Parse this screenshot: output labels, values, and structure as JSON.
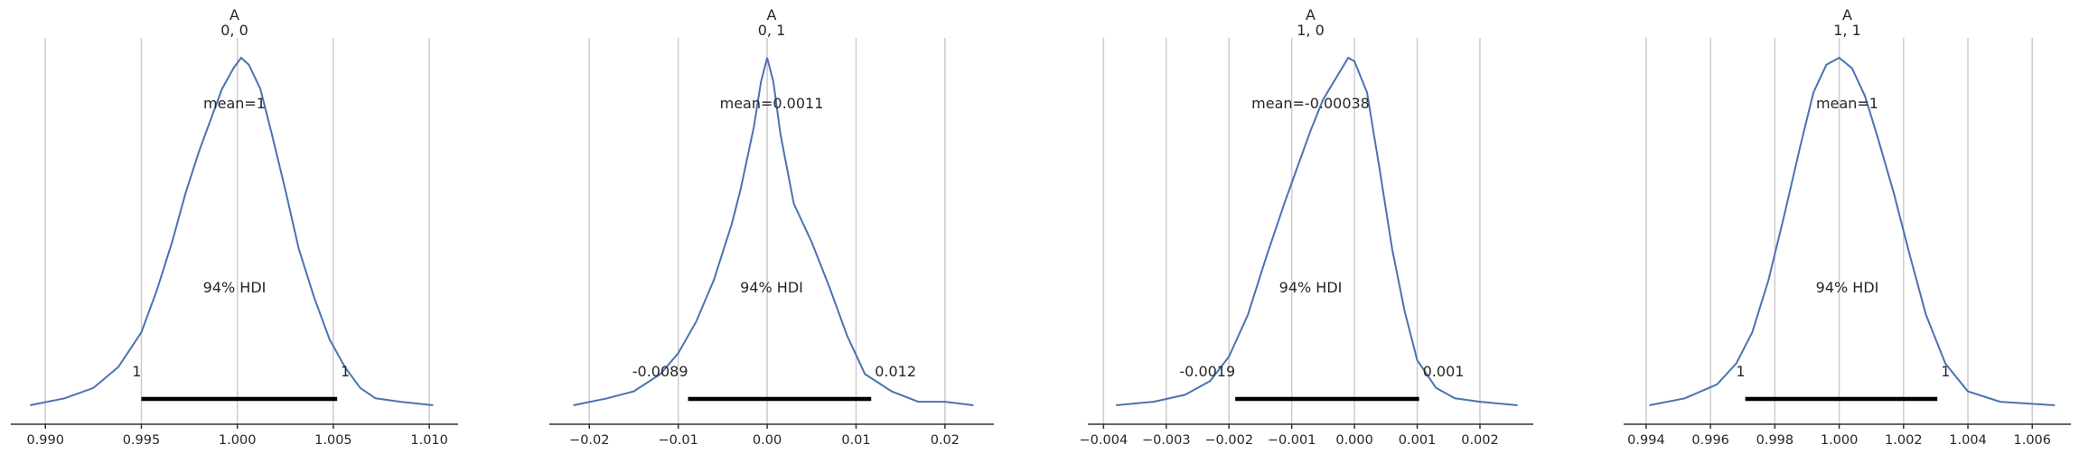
{
  "chart_data": [
    {
      "type": "line",
      "variable": "A",
      "coords": "0, 0",
      "mean_label": "mean=1",
      "hdi_label": "94% HDI",
      "hdi_low": 0.995,
      "hdi_high": 1.0052,
      "hdi_low_label": "1",
      "hdi_high_label": "1",
      "xlim": [
        0.9882,
        1.0115
      ],
      "xticks": [
        0.99,
        0.995,
        1.0,
        1.005,
        1.01
      ],
      "xtick_labels": [
        "0.990",
        "0.995",
        "1.000",
        "1.005",
        "1.010"
      ],
      "density": {
        "x": [
          0.9892,
          0.991,
          0.9925,
          0.9938,
          0.995,
          0.9958,
          0.9966,
          0.9973,
          0.998,
          0.9986,
          0.9992,
          0.9998,
          1.0002,
          1.0006,
          1.0012,
          1.0018,
          1.0025,
          1.0032,
          1.004,
          1.0048,
          1.0056,
          1.0064,
          1.0072,
          1.0085,
          1.0102
        ],
        "y": [
          0.0,
          0.02,
          0.05,
          0.11,
          0.21,
          0.33,
          0.47,
          0.61,
          0.73,
          0.82,
          0.91,
          0.97,
          1.0,
          0.98,
          0.91,
          0.78,
          0.62,
          0.45,
          0.31,
          0.19,
          0.11,
          0.05,
          0.02,
          0.01,
          0.0
        ]
      }
    },
    {
      "type": "line",
      "variable": "A",
      "coords": "0, 1",
      "mean_label": "mean=0.0011",
      "hdi_label": "94% HDI",
      "hdi_low": -0.0089,
      "hdi_high": 0.0117,
      "hdi_low_label": "-0.0089",
      "hdi_high_label": "0.012",
      "xlim": [
        -0.0245,
        0.0255
      ],
      "xticks": [
        -0.02,
        -0.01,
        0.0,
        0.01,
        0.02
      ],
      "xtick_labels": [
        "−0.02",
        "−0.01",
        "0.00",
        "0.01",
        "0.02"
      ],
      "density": {
        "x": [
          -0.0218,
          -0.018,
          -0.015,
          -0.012,
          -0.01,
          -0.008,
          -0.006,
          -0.004,
          -0.003,
          -0.0015,
          -0.0007,
          0.0,
          0.0007,
          0.0015,
          0.003,
          0.005,
          0.007,
          0.009,
          0.011,
          0.014,
          0.017,
          0.02,
          0.0232
        ],
        "y": [
          0.0,
          0.02,
          0.04,
          0.09,
          0.15,
          0.24,
          0.36,
          0.52,
          0.62,
          0.8,
          0.93,
          1.0,
          0.93,
          0.78,
          0.58,
          0.47,
          0.34,
          0.2,
          0.09,
          0.04,
          0.01,
          0.01,
          0.0
        ]
      }
    },
    {
      "type": "line",
      "variable": "A",
      "coords": "1, 0",
      "mean_label": "mean=-0.00038",
      "hdi_label": "94% HDI",
      "hdi_low": -0.0019,
      "hdi_high": 0.00103,
      "hdi_low_label": "-0.0019",
      "hdi_high_label": "0.001",
      "xlim": [
        -0.00425,
        0.00285
      ],
      "xticks": [
        -0.004,
        -0.003,
        -0.002,
        -0.001,
        0.0,
        0.001,
        0.002
      ],
      "xtick_labels": [
        "−0.004",
        "−0.003",
        "−0.002",
        "−0.001",
        "0.000",
        "0.001",
        "0.002"
      ],
      "density": {
        "x": [
          -0.0038,
          -0.0032,
          -0.0027,
          -0.0023,
          -0.002,
          -0.0017,
          -0.0014,
          -0.0011,
          -0.0009,
          -0.0007,
          -0.0005,
          -0.0003,
          -0.0001,
          0.0,
          0.0002,
          0.0004,
          0.0006,
          0.0008,
          0.001,
          0.0013,
          0.0016,
          0.002,
          0.0026
        ],
        "y": [
          0.0,
          0.01,
          0.03,
          0.07,
          0.14,
          0.26,
          0.43,
          0.59,
          0.69,
          0.79,
          0.88,
          0.94,
          1.0,
          0.99,
          0.9,
          0.68,
          0.45,
          0.27,
          0.13,
          0.05,
          0.02,
          0.01,
          0.0
        ]
      }
    },
    {
      "type": "line",
      "variable": "A",
      "coords": "1, 1",
      "mean_label": "mean=1",
      "hdi_label": "94% HDI",
      "hdi_low": 0.99708,
      "hdi_high": 1.00305,
      "hdi_low_label": "1",
      "hdi_high_label": "1",
      "xlim": [
        0.9933,
        1.0072
      ],
      "xticks": [
        0.994,
        0.996,
        0.998,
        1.0,
        1.002,
        1.004,
        1.006
      ],
      "xtick_labels": [
        "0.994",
        "0.996",
        "0.998",
        "1.000",
        "1.002",
        "1.004",
        "1.006"
      ],
      "density": {
        "x": [
          0.9941,
          0.9952,
          0.9962,
          0.9968,
          0.9973,
          0.9978,
          0.9983,
          0.9988,
          0.9992,
          0.9996,
          1.0,
          1.0004,
          1.0008,
          1.0012,
          1.0017,
          1.0022,
          1.0027,
          1.0033,
          1.004,
          1.005,
          1.0067
        ],
        "y": [
          0.0,
          0.02,
          0.06,
          0.12,
          0.21,
          0.36,
          0.55,
          0.75,
          0.9,
          0.98,
          1.0,
          0.97,
          0.89,
          0.77,
          0.61,
          0.43,
          0.26,
          0.12,
          0.04,
          0.01,
          0.0
        ]
      }
    }
  ]
}
